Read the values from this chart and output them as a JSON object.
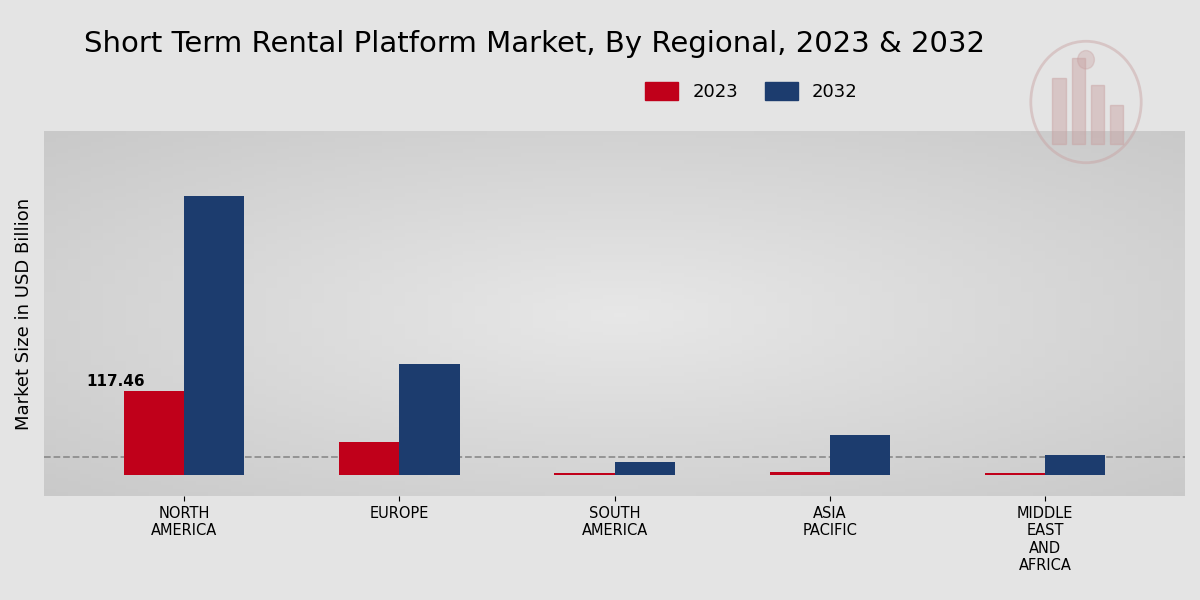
{
  "title": "Short Term Rental Platform Market, By Regional, 2023 & 2032",
  "ylabel": "Market Size in USD Billion",
  "categories": [
    "NORTH\nAMERICA",
    "EUROPE",
    "SOUTH\nAMERICA",
    "ASIA\nPACIFIC",
    "MIDDLE\nEAST\nAND\nAFRICA"
  ],
  "values_2023": [
    117.46,
    45.0,
    2.5,
    3.5,
    2.2
  ],
  "values_2032": [
    390.0,
    155.0,
    18.0,
    55.0,
    28.0
  ],
  "color_2023": "#c0001a",
  "color_2032": "#1c3c6e",
  "annotation_value": "117.46",
  "background_color": "#e4e4e4",
  "bar_width": 0.28,
  "dashed_line_y": 25.0,
  "legend_labels": [
    "2023",
    "2032"
  ],
  "title_fontsize": 21,
  "axis_label_fontsize": 13,
  "tick_fontsize": 10.5,
  "ylim_max": 480,
  "logo_color": "#c8a0a0"
}
